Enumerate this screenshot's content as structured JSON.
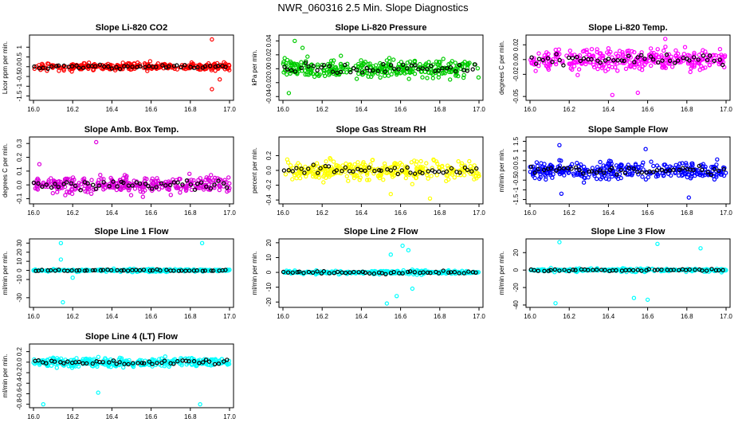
{
  "page_title": "NWR_060316  2.5 Min. Slope Diagnostics",
  "chart_data": [
    {
      "type": "scatter",
      "title": "Slope Li-820 CO2",
      "ylabel": "Licor ppm per min.",
      "color": "#ff0000",
      "xlim": [
        16.0,
        17.0
      ],
      "ylim": [
        -1.6,
        1.5
      ],
      "yticks": [
        -1.5,
        -1,
        -0.5,
        0,
        0.5,
        1
      ],
      "xticks": [
        16.0,
        16.2,
        16.4,
        16.6,
        16.8,
        17.0
      ],
      "spread": 0.18,
      "outliers": [
        [
          16.91,
          1.4
        ],
        [
          16.95,
          -0.65
        ],
        [
          16.91,
          -1.15
        ]
      ],
      "seed": 11
    },
    {
      "type": "scatter",
      "title": "Slope Li-820 Pressure",
      "ylabel": "kPa per min.",
      "color": "#00cc00",
      "xlim": [
        16.0,
        17.0
      ],
      "ylim": [
        -0.042,
        0.045
      ],
      "yticks": [
        -0.04,
        -0.02,
        0.0,
        0.02,
        0.04
      ],
      "xticks": [
        16.0,
        16.2,
        16.4,
        16.6,
        16.8,
        17.0
      ],
      "spread": 0.012,
      "outliers": [
        [
          16.06,
          0.04
        ],
        [
          16.03,
          -0.035
        ],
        [
          16.1,
          0.03
        ]
      ],
      "seed": 23
    },
    {
      "type": "scatter",
      "title": "Slope Li-820 Temp.",
      "ylabel": "degrees C per min.",
      "color": "#ff00ff",
      "xlim": [
        16.0,
        17.0
      ],
      "ylim": [
        -0.052,
        0.03
      ],
      "yticks": [
        -0.05,
        -0.02,
        0.0,
        0.02
      ],
      "xticks": [
        16.0,
        16.2,
        16.4,
        16.6,
        16.8,
        17.0
      ],
      "spread": 0.013,
      "outliers": [
        [
          16.69,
          0.028
        ],
        [
          16.42,
          -0.048
        ],
        [
          16.55,
          -0.045
        ]
      ],
      "seed": 37
    },
    {
      "type": "scatter",
      "title": "Slope Amb. Box Temp.",
      "ylabel": "degrees C per min.",
      "color": "#dd00dd",
      "xlim": [
        16.0,
        17.0
      ],
      "ylim": [
        -0.12,
        0.33
      ],
      "yticks": [
        -0.1,
        0.0,
        0.1,
        0.2,
        0.3
      ],
      "xticks": [
        16.0,
        16.2,
        16.4,
        16.6,
        16.8,
        17.0
      ],
      "spread": 0.055,
      "outliers": [
        [
          16.32,
          0.31
        ],
        [
          16.03,
          0.15
        ]
      ],
      "seed": 41
    },
    {
      "type": "scatter",
      "title": "Slope Gas Stream RH",
      "ylabel": "percent per min.",
      "color": "#ffff00",
      "xlim": [
        16.0,
        17.0
      ],
      "ylim": [
        -0.42,
        0.42
      ],
      "yticks": [
        -0.4,
        -0.2,
        0.0,
        0.2
      ],
      "xticks": [
        16.0,
        16.2,
        16.4,
        16.6,
        16.8,
        17.0
      ],
      "spread": 0.12,
      "outliers": [
        [
          16.75,
          -0.38
        ],
        [
          16.55,
          -0.32
        ]
      ],
      "seed": 53
    },
    {
      "type": "scatter",
      "title": "Slope Sample Flow",
      "ylabel": "ml/min per min.",
      "color": "#0000ff",
      "xlim": [
        16.0,
        17.0
      ],
      "ylim": [
        -1.6,
        1.6
      ],
      "yticks": [
        -1.5,
        -1.0,
        -0.5,
        0.0,
        0.5,
        1.0,
        1.5
      ],
      "xticks": [
        16.0,
        16.2,
        16.4,
        16.6,
        16.8,
        17.0
      ],
      "spread": 0.4,
      "outliers": [
        [
          16.15,
          1.3
        ],
        [
          16.59,
          1.1
        ],
        [
          16.81,
          -1.4
        ],
        [
          16.16,
          -1.2
        ]
      ],
      "seed": 67
    },
    {
      "type": "scatter",
      "title": "Slope Line 1 Flow",
      "ylabel": "ml/min per min.",
      "color": "#00ffff",
      "xlim": [
        16.0,
        17.0
      ],
      "ylim": [
        -38,
        32
      ],
      "yticks": [
        -30,
        -10,
        0,
        10,
        20,
        30
      ],
      "xticks": [
        16.0,
        16.2,
        16.4,
        16.6,
        16.8,
        17.0
      ],
      "spread": 1.5,
      "outliers": [
        [
          16.14,
          30
        ],
        [
          16.86,
          30
        ],
        [
          16.15,
          -35
        ],
        [
          16.14,
          12
        ],
        [
          16.2,
          -8
        ]
      ],
      "seed": 71
    },
    {
      "type": "scatter",
      "title": "Slope Line 2 Flow",
      "ylabel": "ml/min per min.",
      "color": "#00ffff",
      "xlim": [
        16.0,
        17.0
      ],
      "ylim": [
        -22,
        21
      ],
      "yticks": [
        -20,
        -10,
        0,
        10,
        20
      ],
      "xticks": [
        16.0,
        16.2,
        16.4,
        16.6,
        16.8,
        17.0
      ],
      "spread": 1.5,
      "outliers": [
        [
          16.61,
          18
        ],
        [
          16.64,
          15
        ],
        [
          16.53,
          -21
        ],
        [
          16.58,
          -16
        ],
        [
          16.66,
          -11
        ],
        [
          16.55,
          12
        ]
      ],
      "seed": 83
    },
    {
      "type": "scatter",
      "title": "Slope Line 3 Flow",
      "ylabel": "ml/min per min.",
      "color": "#00ffff",
      "xlim": [
        16.0,
        17.0
      ],
      "ylim": [
        -40,
        33
      ],
      "yticks": [
        -40,
        -20,
        0,
        20
      ],
      "xticks": [
        16.0,
        16.2,
        16.4,
        16.6,
        16.8,
        17.0
      ],
      "spread": 2.0,
      "outliers": [
        [
          16.15,
          32
        ],
        [
          16.13,
          -38
        ],
        [
          16.6,
          -34
        ],
        [
          16.53,
          -32
        ],
        [
          16.65,
          30
        ],
        [
          16.87,
          25
        ]
      ],
      "seed": 97
    },
    {
      "type": "scatter",
      "title": "Slope Line 4 (LT) Flow",
      "ylabel": "ml/min per min.",
      "color": "#00ffff",
      "xlim": [
        16.0,
        17.0
      ],
      "ylim": [
        -0.82,
        0.3
      ],
      "yticks": [
        -0.8,
        -0.6,
        -0.4,
        -0.2,
        0.0,
        0.2
      ],
      "xticks": [
        16.0,
        16.2,
        16.4,
        16.6,
        16.8,
        17.0
      ],
      "spread": 0.08,
      "outliers": [
        [
          16.33,
          -0.58
        ],
        [
          16.05,
          -0.8
        ],
        [
          16.85,
          -0.8
        ]
      ],
      "seed": 101
    }
  ]
}
